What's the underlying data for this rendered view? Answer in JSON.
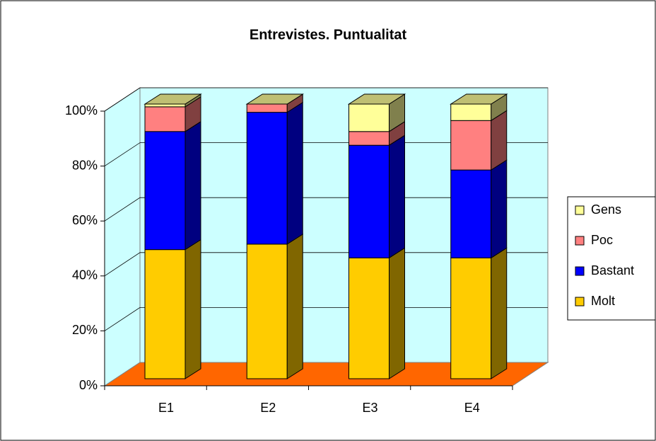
{
  "chart_data": {
    "type": "bar",
    "stacked": true,
    "title": "Entrevistes. Puntualitat",
    "categories": [
      "E1",
      "E2",
      "E3",
      "E4"
    ],
    "series": [
      {
        "name": "Molt",
        "color": "#ffcc00",
        "values": [
          47,
          49,
          44,
          44
        ]
      },
      {
        "name": "Bastant",
        "color": "#0000ff",
        "values": [
          43,
          48,
          41,
          32
        ]
      },
      {
        "name": "Poc",
        "color": "#ff8080",
        "values": [
          9,
          3,
          5,
          18
        ]
      },
      {
        "name": "Gens",
        "color": "#ffff99",
        "values": [
          1,
          0,
          10,
          6
        ]
      }
    ],
    "ylim": [
      0,
      100
    ],
    "yticks": [
      {
        "value": 0,
        "label": "0%"
      },
      {
        "value": 20,
        "label": "20%"
      },
      {
        "value": 40,
        "label": "40%"
      },
      {
        "value": 60,
        "label": "60%"
      },
      {
        "value": 80,
        "label": "80%"
      },
      {
        "value": 100,
        "label": "100%"
      }
    ],
    "grid": true,
    "legend": "right"
  }
}
